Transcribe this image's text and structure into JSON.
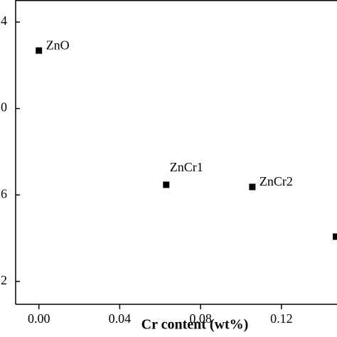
{
  "chart_data": {
    "type": "scatter",
    "x_label": "Cr content (wt%)",
    "x": [
      0.0,
      0.063,
      0.1056,
      0.147
    ],
    "series": [
      {
        "color": "#000000",
        "values": [
          12.68,
          6.47,
          6.37,
          4.07
        ]
      }
    ],
    "point_labels": [
      "ZnO",
      "ZnCr1",
      "ZnCr2",
      null
    ],
    "xlim": [
      -0.0115,
      0.1475
    ],
    "ylim": [
      0.94,
      15.02
    ],
    "xticks": [
      {
        "value": 0,
        "label": "0.00"
      },
      0.04,
      0.08,
      0.12
    ],
    "yticks": [
      2,
      6,
      {
        "value": 10,
        "label": "0"
      },
      {
        "value": 14,
        "label": "4"
      }
    ]
  }
}
